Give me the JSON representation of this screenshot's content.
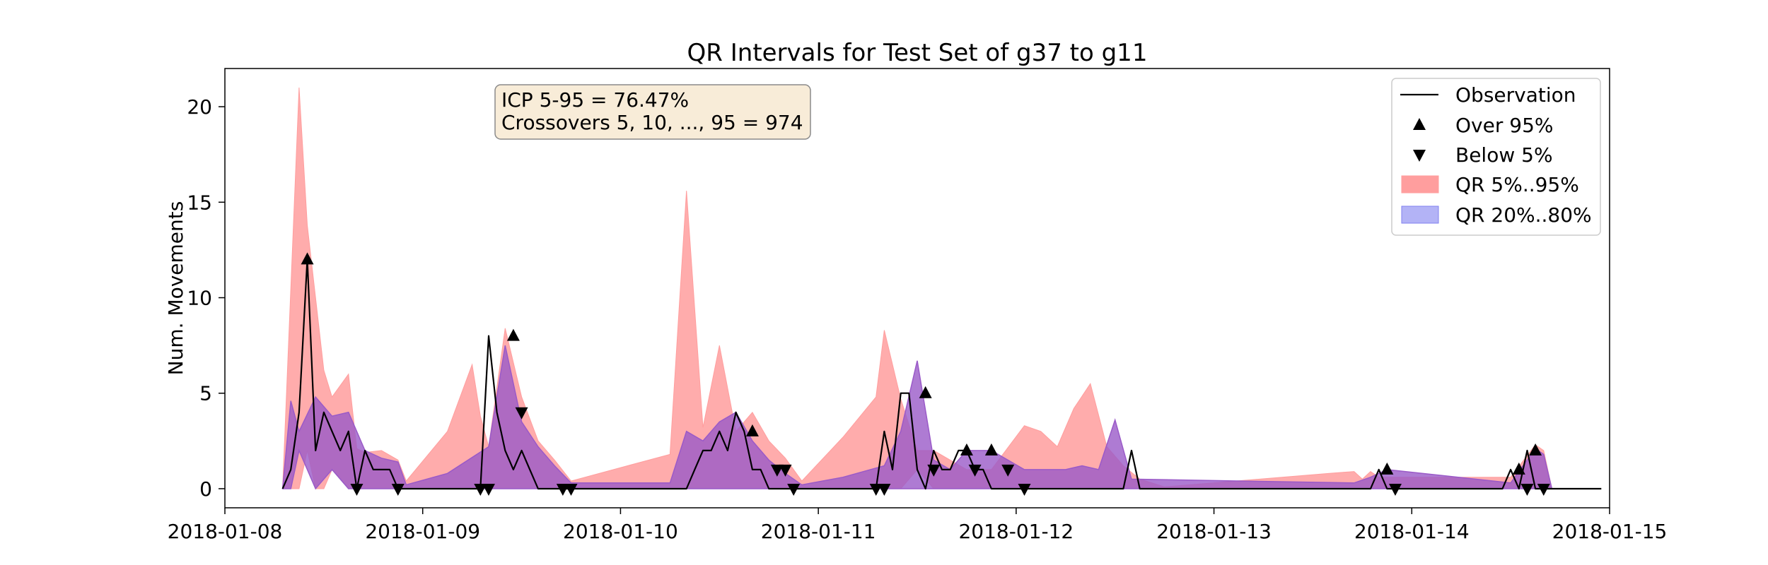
{
  "chart_data": {
    "type": "area",
    "title": "QR Intervals for Test Set of g37 to g11",
    "ylabel": "Num. Movements",
    "xlabel": "",
    "xlim": [
      "2018-01-08T00:00",
      "2018-01-15T00:00"
    ],
    "ylim": [
      -1,
      22
    ],
    "grid": false,
    "legend_position": "top-right",
    "x_ticks": [
      "2018-01-08",
      "2018-01-09",
      "2018-01-10",
      "2018-01-11",
      "2018-01-12",
      "2018-01-13",
      "2018-01-14",
      "2018-01-15"
    ],
    "y_ticks": [
      0,
      5,
      10,
      15,
      20
    ],
    "annotation": {
      "lines": [
        "ICP 5-95 = 76.47%",
        "Crossovers 5, 10, ..., 95 = 974"
      ],
      "background": "#f8ecd8",
      "border": "#8a8a8a"
    },
    "colors": {
      "observation": "#000000",
      "qr_5_95": "#ff9e9e",
      "qr_20_80": "#8080f0",
      "band_overlap": "#9a5ac8"
    },
    "series": [
      {
        "name": "Observation",
        "kind": "line",
        "x": [
          "2018-01-08T07:00",
          "2018-01-08T08:00",
          "2018-01-08T09:00",
          "2018-01-08T10:00",
          "2018-01-08T11:00",
          "2018-01-08T12:00",
          "2018-01-08T13:00",
          "2018-01-08T14:00",
          "2018-01-08T15:00",
          "2018-01-08T16:00",
          "2018-01-08T17:00",
          "2018-01-08T18:00",
          "2018-01-08T19:00",
          "2018-01-08T20:00",
          "2018-01-08T21:00",
          "2018-01-08T22:00",
          "2018-01-09T04:00",
          "2018-01-09T05:00",
          "2018-01-09T06:00",
          "2018-01-09T07:00",
          "2018-01-09T08:00",
          "2018-01-09T09:00",
          "2018-01-09T10:00",
          "2018-01-09T11:00",
          "2018-01-09T12:00",
          "2018-01-09T13:00",
          "2018-01-09T14:00",
          "2018-01-09T15:00",
          "2018-01-09T16:00",
          "2018-01-09T17:00",
          "2018-01-09T18:00",
          "2018-01-10T00:00",
          "2018-01-10T08:00",
          "2018-01-10T09:00",
          "2018-01-10T10:00",
          "2018-01-10T11:00",
          "2018-01-10T12:00",
          "2018-01-10T13:00",
          "2018-01-10T14:00",
          "2018-01-10T15:00",
          "2018-01-10T16:00",
          "2018-01-10T17:00",
          "2018-01-10T18:00",
          "2018-01-10T19:00",
          "2018-01-10T20:00",
          "2018-01-10T21:00",
          "2018-01-11T00:00",
          "2018-01-11T06:00",
          "2018-01-11T07:00",
          "2018-01-11T08:00",
          "2018-01-11T09:00",
          "2018-01-11T10:00",
          "2018-01-11T11:00",
          "2018-01-11T12:00",
          "2018-01-11T13:00",
          "2018-01-11T14:00",
          "2018-01-11T15:00",
          "2018-01-11T16:00",
          "2018-01-11T17:00",
          "2018-01-11T18:00",
          "2018-01-11T19:00",
          "2018-01-11T20:00",
          "2018-01-11T21:00",
          "2018-01-11T22:00",
          "2018-01-12T12:00",
          "2018-01-12T13:00",
          "2018-01-12T14:00",
          "2018-01-12T15:00",
          "2018-01-13T19:00",
          "2018-01-13T20:00",
          "2018-01-13T21:00",
          "2018-01-14T08:00",
          "2018-01-14T09:00",
          "2018-01-14T10:00",
          "2018-01-14T11:00",
          "2018-01-14T12:00",
          "2018-01-14T13:00",
          "2018-01-14T14:00",
          "2018-01-14T15:00",
          "2018-01-14T16:00",
          "2018-01-14T23:00"
        ],
        "values": [
          0,
          1,
          4,
          12,
          2,
          4,
          3,
          2,
          3,
          0,
          2,
          1,
          1,
          1,
          0,
          0,
          0,
          0,
          0,
          0,
          8,
          4,
          2,
          1,
          2,
          1,
          0,
          0,
          0,
          0,
          0,
          0,
          0,
          1,
          2,
          2,
          3,
          2,
          4,
          3,
          1,
          1,
          0,
          0,
          0,
          0,
          0,
          0,
          0,
          3,
          1,
          5,
          5,
          1,
          0,
          2,
          1,
          1,
          2,
          2,
          1,
          1,
          0,
          0,
          0,
          0,
          2,
          0,
          0,
          1,
          0,
          0,
          0,
          0,
          0,
          1,
          0,
          2,
          0,
          0,
          0
        ]
      },
      {
        "name": "Over 95%",
        "kind": "markers",
        "marker": "triangle-up",
        "x": [
          "2018-01-08T10:00",
          "2018-01-09T11:00",
          "2018-01-10T16:00",
          "2018-01-11T13:00",
          "2018-01-11T18:00",
          "2018-01-11T21:00",
          "2018-01-13T21:00",
          "2018-01-14T13:00",
          "2018-01-14T15:00"
        ],
        "values": [
          12,
          8,
          3,
          5,
          2,
          2,
          1,
          1,
          2
        ]
      },
      {
        "name": "Below 5%",
        "kind": "markers",
        "marker": "triangle-down",
        "x": [
          "2018-01-08T16:00",
          "2018-01-08T21:00",
          "2018-01-09T07:00",
          "2018-01-09T08:00",
          "2018-01-09T12:00",
          "2018-01-09T17:00",
          "2018-01-09T18:00",
          "2018-01-10T19:00",
          "2018-01-10T20:00",
          "2018-01-10T21:00",
          "2018-01-11T07:00",
          "2018-01-11T08:00",
          "2018-01-11T14:00",
          "2018-01-11T19:00",
          "2018-01-11T23:00",
          "2018-01-12T01:00",
          "2018-01-13T22:00",
          "2018-01-14T14:00",
          "2018-01-14T16:00"
        ],
        "values": [
          0,
          0,
          0,
          0,
          4,
          0,
          0,
          1,
          1,
          0,
          0,
          0,
          1,
          1,
          1,
          0,
          0,
          0,
          0
        ]
      },
      {
        "name": "QR 5%..95%",
        "kind": "band",
        "x": [
          "2018-01-08T07:00",
          "2018-01-08T09:00",
          "2018-01-08T10:00",
          "2018-01-08T11:00",
          "2018-01-08T12:00",
          "2018-01-08T13:00",
          "2018-01-08T15:00",
          "2018-01-08T16:00",
          "2018-01-08T17:00",
          "2018-01-08T19:00",
          "2018-01-08T21:00",
          "2018-01-08T22:00",
          "2018-01-09T03:00",
          "2018-01-09T06:00",
          "2018-01-09T07:00",
          "2018-01-09T08:00",
          "2018-01-09T10:00",
          "2018-01-09T12:00",
          "2018-01-09T14:00",
          "2018-01-09T16:00",
          "2018-01-09T18:00",
          "2018-01-10T06:00",
          "2018-01-10T08:00",
          "2018-01-10T10:00",
          "2018-01-10T12:00",
          "2018-01-10T14:00",
          "2018-01-10T16:00",
          "2018-01-10T18:00",
          "2018-01-10T20:00",
          "2018-01-10T22:00",
          "2018-01-11T03:00",
          "2018-01-11T07:00",
          "2018-01-11T08:00",
          "2018-01-11T10:00",
          "2018-01-11T12:00",
          "2018-01-11T14:00",
          "2018-01-11T16:00",
          "2018-01-11T18:00",
          "2018-01-11T21:00",
          "2018-01-12T01:00",
          "2018-01-12T03:00",
          "2018-01-12T05:00",
          "2018-01-12T07:00",
          "2018-01-12T09:00",
          "2018-01-12T11:00",
          "2018-01-12T13:00",
          "2018-01-12T15:00",
          "2018-01-12T18:00",
          "2018-01-13T14:00",
          "2018-01-13T17:00",
          "2018-01-13T18:00",
          "2018-01-13T19:00",
          "2018-01-13T20:00",
          "2018-01-14T12:00",
          "2018-01-14T15:00",
          "2018-01-14T16:00",
          "2018-01-14T17:00"
        ],
        "low": [
          0,
          0,
          2,
          0,
          0,
          1,
          0,
          0,
          0,
          0,
          0,
          0,
          0,
          0,
          0,
          0,
          0,
          0,
          0,
          0,
          0,
          0,
          0,
          0,
          0,
          0,
          0,
          0,
          0,
          0,
          0,
          0,
          0,
          0,
          1,
          0,
          0,
          0,
          0,
          0,
          0,
          0,
          0,
          0,
          0,
          0,
          0,
          0,
          0,
          0,
          0,
          0,
          0,
          0,
          0,
          0,
          0
        ],
        "high": [
          0,
          21,
          13.8,
          10,
          6.2,
          4.8,
          6,
          2.1,
          1.9,
          2,
          1.5,
          0.4,
          3,
          6.5,
          3.8,
          2.2,
          8.4,
          4.8,
          2.5,
          1.5,
          0.4,
          1.8,
          15.6,
          3.2,
          7.5,
          3,
          4,
          2.5,
          1.6,
          0.4,
          2.7,
          4.8,
          8.3,
          4.7,
          2,
          2,
          1.5,
          1,
          1,
          3.3,
          3,
          2.2,
          4.2,
          5.5,
          2.2,
          1.2,
          0.5,
          0.1,
          0.8,
          0.9,
          0.5,
          0.9,
          0.6,
          0.6,
          2.3,
          2,
          0
        ]
      },
      {
        "name": "QR 20%..80%",
        "kind": "band",
        "x": [
          "2018-01-08T07:00",
          "2018-01-08T08:00",
          "2018-01-08T09:00",
          "2018-01-08T11:00",
          "2018-01-08T13:00",
          "2018-01-08T15:00",
          "2018-01-08T17:00",
          "2018-01-08T19:00",
          "2018-01-08T21:00",
          "2018-01-08T22:00",
          "2018-01-09T03:00",
          "2018-01-09T08:00",
          "2018-01-09T10:00",
          "2018-01-09T12:00",
          "2018-01-09T14:00",
          "2018-01-09T16:00",
          "2018-01-09T18:00",
          "2018-01-10T06:00",
          "2018-01-10T08:00",
          "2018-01-10T10:00",
          "2018-01-10T12:00",
          "2018-01-10T14:00",
          "2018-01-10T16:00",
          "2018-01-10T18:00",
          "2018-01-10T20:00",
          "2018-01-10T22:00",
          "2018-01-11T03:00",
          "2018-01-11T08:00",
          "2018-01-11T10:00",
          "2018-01-11T12:00",
          "2018-01-11T14:00",
          "2018-01-11T16:00",
          "2018-01-11T18:00",
          "2018-01-11T21:00",
          "2018-01-12T01:00",
          "2018-01-12T03:00",
          "2018-01-12T06:00",
          "2018-01-12T08:00",
          "2018-01-12T10:00",
          "2018-01-12T12:00",
          "2018-01-12T14:00",
          "2018-01-13T17:00",
          "2018-01-13T19:00",
          "2018-01-13T21:00",
          "2018-01-14T12:00",
          "2018-01-14T15:00",
          "2018-01-14T16:00",
          "2018-01-14T17:00"
        ],
        "low": [
          0,
          0,
          2,
          0,
          1,
          0,
          0,
          0,
          0,
          0,
          0,
          0,
          0,
          0,
          0,
          0,
          0,
          0,
          0,
          0,
          0,
          0,
          0,
          0,
          0,
          0,
          0,
          0,
          0,
          0,
          0,
          0,
          0,
          0,
          0,
          0,
          0,
          0,
          0,
          0,
          0,
          0,
          0,
          0,
          0,
          0,
          0,
          0
        ],
        "high": [
          0,
          4.6,
          3,
          4.8,
          3.8,
          4,
          2,
          1.6,
          1.4,
          0.2,
          0.8,
          2.2,
          7.5,
          3.5,
          2.2,
          1.2,
          0.3,
          0.3,
          3,
          2.5,
          3.5,
          4,
          2.5,
          1.5,
          0.8,
          0.2,
          0.6,
          1.2,
          3,
          6.7,
          1.5,
          1,
          2,
          2,
          1,
          1,
          1,
          1.2,
          1,
          3.6,
          0.5,
          0.3,
          0.6,
          1,
          0.3,
          2.1,
          1.8,
          0
        ]
      }
    ]
  }
}
